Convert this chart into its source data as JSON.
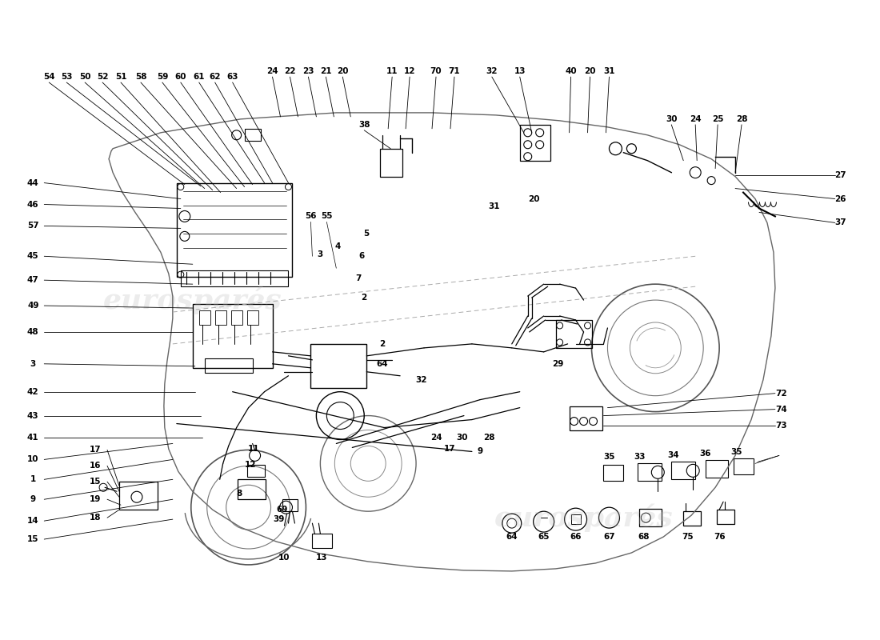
{
  "background_color": "#ffffff",
  "line_color": "#000000",
  "figsize": [
    11.0,
    8.0
  ],
  "dpi": 100,
  "watermark_color": "#cccccc",
  "watermark_alpha": 0.3,
  "car_body_color": "#888888",
  "component_color": "#000000"
}
